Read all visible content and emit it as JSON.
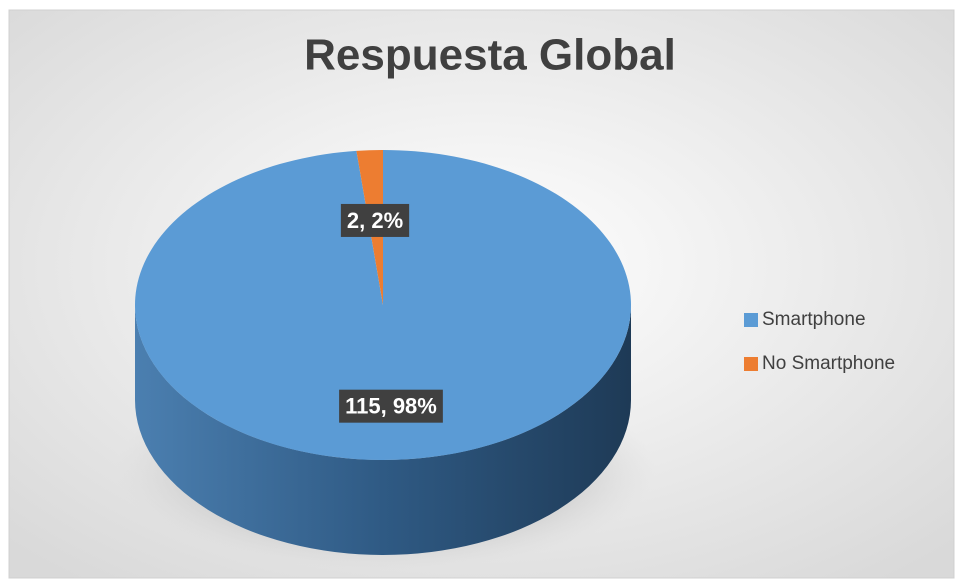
{
  "chart_data": {
    "type": "pie3d",
    "title": "Respuesta Global",
    "categories": [
      "Smartphone",
      "No Smartphone"
    ],
    "values": [
      115,
      2
    ],
    "value_labels": [
      "115, 98%",
      "2, 2%"
    ],
    "colors": [
      "#5b9bd5",
      "#ed7d31"
    ],
    "legend": "right"
  }
}
